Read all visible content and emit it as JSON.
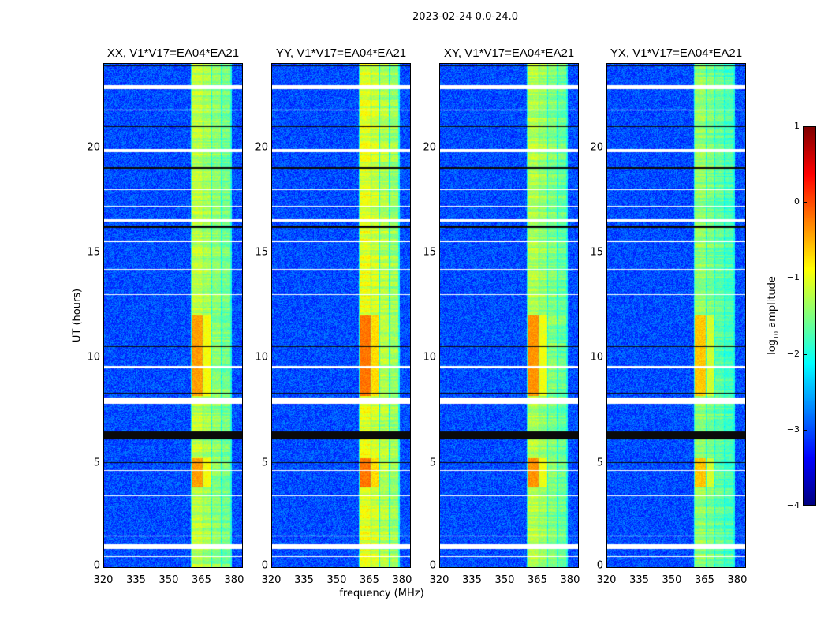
{
  "title": "2023-02-24 0.0-24.0",
  "chart_data": {
    "type": "heatmap",
    "title": "2023-02-24 0.0-24.0",
    "xlabel": "frequency (MHz)",
    "ylabel": "UT (hours)",
    "xlim": [
      320,
      384
    ],
    "ylim": [
      0,
      24
    ],
    "xticks": [
      "320",
      "335",
      "350",
      "365",
      "380"
    ],
    "yticks": [
      "0",
      "5",
      "10",
      "15",
      "20"
    ],
    "xtick_values": [
      320,
      335,
      350,
      365,
      380
    ],
    "ytick_values": [
      0,
      5,
      10,
      15,
      20
    ],
    "panels": [
      {
        "title": "XX, V1*V17=EA04*EA21",
        "background_level": -3.0,
        "band_level": -1.2,
        "peak_level": -0.4
      },
      {
        "title": "YY, V1*V17=EA04*EA21",
        "background_level": -3.0,
        "band_level": -1.0,
        "peak_level": -0.2
      },
      {
        "title": "XY, V1*V17=EA04*EA21",
        "background_level": -3.0,
        "band_level": -1.25,
        "peak_level": -0.35
      },
      {
        "title": "YX, V1*V17=EA04*EA21",
        "background_level": -3.0,
        "band_level": -1.4,
        "peak_level": -0.6
      }
    ],
    "rfi_band_mhz": [
      [
        360.5,
        365.5
      ],
      [
        366.0,
        369.5
      ],
      [
        370.0,
        374.0
      ],
      [
        374.5,
        378.5
      ]
    ],
    "strong_periods_ut": [
      [
        8.2,
        12.0
      ],
      [
        3.8,
        5.2
      ]
    ],
    "flagged_white_ut": [
      [
        0.9,
        1.1
      ],
      [
        7.8,
        8.1
      ],
      [
        19.8,
        19.95
      ],
      [
        22.8,
        23.0
      ],
      [
        15.5,
        15.6
      ],
      [
        16.5,
        16.6
      ],
      [
        9.5,
        9.6
      ],
      [
        4.6,
        4.65
      ],
      [
        3.4,
        3.45
      ],
      [
        13.0,
        13.05
      ],
      [
        14.2,
        14.25
      ],
      [
        17.2,
        17.25
      ],
      [
        18.0,
        18.05
      ],
      [
        21.8,
        21.85
      ],
      [
        0.5,
        0.53
      ],
      [
        1.5,
        1.53
      ]
    ],
    "flagged_black_ut": [
      [
        6.1,
        6.5
      ],
      [
        5.0,
        5.04
      ],
      [
        10.5,
        10.55
      ],
      [
        16.2,
        16.3
      ],
      [
        19.0,
        19.1
      ],
      [
        23.9,
        23.95
      ],
      [
        21.0,
        21.05
      ],
      [
        8.3,
        8.33
      ]
    ],
    "colorbar": {
      "label": "log10 amplitude",
      "label_main": "log",
      "label_sub": "10",
      "label_rest": " amplitude",
      "range": [
        -4,
        1
      ],
      "ticks": [
        "1",
        "0",
        "−1",
        "−2",
        "−3",
        "−4"
      ],
      "tick_values": [
        1,
        0,
        -1,
        -2,
        -3,
        -4
      ],
      "colormap": "jet"
    }
  }
}
